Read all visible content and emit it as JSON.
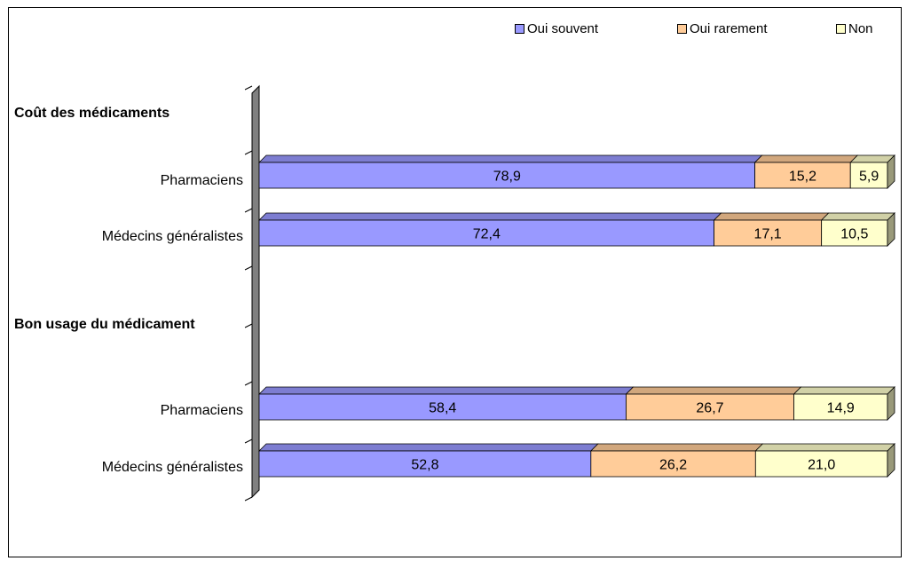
{
  "chart_data": {
    "type": "bar",
    "orientation": "horizontal",
    "stacked": true,
    "percent_stacked": true,
    "three_d": true,
    "legend_position": "top-right",
    "grid": false,
    "groups": [
      {
        "label": "Coût des médicaments",
        "rows": [
          {
            "label": "Pharmaciens",
            "values": [
              78.9,
              15.2,
              5.9
            ],
            "labels": [
              "78,9",
              "15,2",
              "5,9"
            ]
          },
          {
            "label": "Médecins généralistes",
            "values": [
              72.4,
              17.1,
              10.5
            ],
            "labels": [
              "72,4",
              "17,1",
              "10,5"
            ]
          }
        ]
      },
      {
        "label": "Bon usage du médicament",
        "rows": [
          {
            "label": "Pharmaciens",
            "values": [
              58.4,
              26.7,
              14.9
            ],
            "labels": [
              "58,4",
              "26,7",
              "14,9"
            ]
          },
          {
            "label": "Médecins généralistes",
            "values": [
              52.8,
              26.2,
              21.0
            ],
            "labels": [
              "52,8",
              "26,2",
              "21,0"
            ]
          }
        ]
      }
    ],
    "series": [
      {
        "name": "Oui souvent",
        "color": "#9999FF"
      },
      {
        "name": "Oui rarement",
        "color": "#FFCC99"
      },
      {
        "name": "Non",
        "color": "#FFFFCC"
      }
    ],
    "xlim": [
      0,
      100
    ]
  },
  "legend": {
    "s0": "Oui souvent",
    "s1": "Oui rarement",
    "s2": "Non"
  },
  "labels": {
    "g0": "Coût des médicaments",
    "g0r0": "Pharmaciens",
    "g0r1": "Médecins généralistes",
    "g1": "Bon usage du médicament",
    "g1r0": "Pharmaciens",
    "g1r1": "Médecins généralistes"
  }
}
